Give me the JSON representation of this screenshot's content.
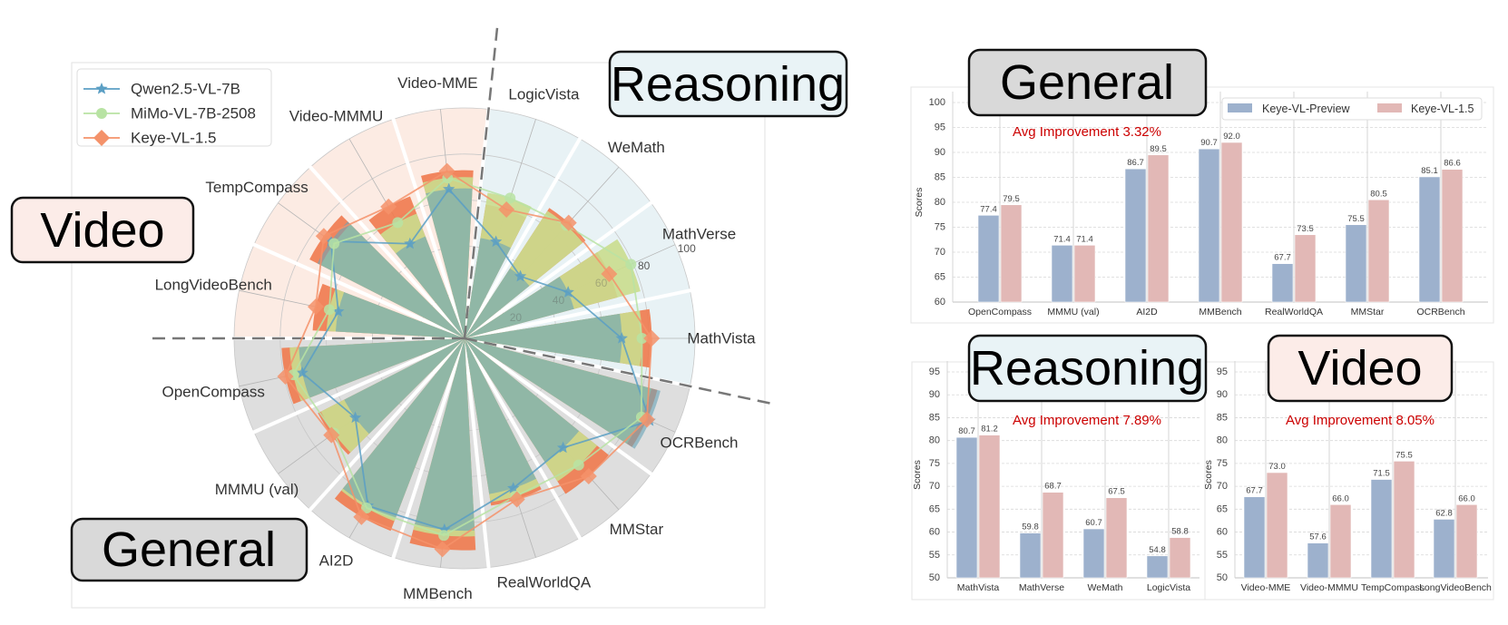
{
  "labels": {
    "reasoning": "Reasoning",
    "video": "Video",
    "general": "General"
  },
  "colors": {
    "reasoning_bg": "#e8f2f5",
    "video_bg": "#fcebe3",
    "general_bg": "#dedede",
    "label_box_reasoning": "#e9f3f6",
    "label_box_video": "#fcece8",
    "label_box_general": "#d9d9d9",
    "bar_preview": "#9db1cd",
    "bar_v15": "#e2b8b6",
    "avg_text": "#cc0000"
  },
  "chart_data": [
    {
      "type": "radar",
      "axes": [
        "MathVista",
        "MathVerse",
        "WeMath",
        "LogicVista",
        "Video-MME",
        "Video-MMMU",
        "TempCompass",
        "LongVideoBench",
        "OpenCompass",
        "MMMU (val)",
        "AI2D",
        "MMBench",
        "RealWorldQA",
        "MMStar",
        "OCRBench"
      ],
      "groups": [
        {
          "name": "Reasoning",
          "axes": [
            0,
            1,
            2,
            3
          ],
          "color": "#e8f2f5"
        },
        {
          "name": "Video",
          "axes": [
            4,
            5,
            6,
            7
          ],
          "color": "#fcebe3"
        },
        {
          "name": "General",
          "axes": [
            8,
            9,
            10,
            11,
            12,
            13,
            14
          ],
          "color": "#dedede"
        }
      ],
      "rlim": [
        0,
        100
      ],
      "rticks": [
        "20",
        "40",
        "60",
        "80",
        "100"
      ],
      "legend": "top-left",
      "series": [
        {
          "name": "Qwen2.5-VL-7B",
          "marker": "star",
          "color": "#5b9fc4",
          "bar_color": "#6aa5b8",
          "values": [
            68.2,
            49.2,
            36.2,
            44.1,
            65.1,
            47.4,
            71.7,
            56.0,
            72.0,
            58.6,
            83.9,
            83.5,
            68.4,
            63.9,
            88.0
          ]
        },
        {
          "name": "MiMo-VL-7B-2508",
          "marker": "circle",
          "color": "#b8e3a3",
          "bar_color": "#cadd8e",
          "values": [
            77.0,
            79.0,
            66.0,
            64.0,
            70.0,
            58.0,
            70.0,
            60.0,
            76.0,
            70.0,
            85.0,
            86.0,
            72.0,
            74.0,
            84.0
          ]
        },
        {
          "name": "Keye-VL-1.5",
          "marker": "diamond",
          "color": "#f4926a",
          "bar_color": "#f07a4e",
          "values": [
            81.2,
            68.7,
            67.5,
            58.8,
            73.0,
            66.0,
            75.5,
            66.0,
            79.5,
            71.4,
            89.5,
            92.0,
            73.5,
            80.5,
            86.6
          ]
        }
      ]
    },
    {
      "type": "bar",
      "title": "General",
      "ylabel": "Scores",
      "ylim": [
        60,
        100
      ],
      "yticks": [
        "60",
        "65",
        "70",
        "75",
        "80",
        "85",
        "90",
        "95",
        "100"
      ],
      "annotation": "Avg Improvement 3.32%",
      "legend": "top-right",
      "categories": [
        "OpenCompass",
        "MMMU (val)",
        "AI2D",
        "MMBench",
        "RealWorldQA",
        "MMStar",
        "OCRBench"
      ],
      "series": [
        {
          "name": "Keye-VL-Preview",
          "values": [
            77.4,
            71.4,
            86.7,
            90.7,
            67.7,
            75.5,
            85.1
          ]
        },
        {
          "name": "Keye-VL-1.5",
          "values": [
            79.5,
            71.4,
            89.5,
            92.0,
            73.5,
            80.5,
            86.6
          ]
        }
      ]
    },
    {
      "type": "bar",
      "title": "Reasoning",
      "ylabel": "Scores",
      "ylim": [
        50,
        95
      ],
      "yticks": [
        "50",
        "55",
        "60",
        "65",
        "70",
        "75",
        "80",
        "85",
        "90",
        "95"
      ],
      "annotation": "Avg Improvement 7.89%",
      "categories": [
        "MathVista",
        "MathVerse",
        "WeMath",
        "LogicVista"
      ],
      "series": [
        {
          "name": "Keye-VL-Preview",
          "values": [
            80.7,
            59.8,
            60.7,
            54.8
          ]
        },
        {
          "name": "Keye-VL-1.5",
          "values": [
            81.2,
            68.7,
            67.5,
            58.8
          ]
        }
      ]
    },
    {
      "type": "bar",
      "title": "Video",
      "ylabel": "Scores",
      "ylim": [
        50,
        95
      ],
      "yticks": [
        "50",
        "55",
        "60",
        "65",
        "70",
        "75",
        "80",
        "85",
        "90",
        "95"
      ],
      "annotation": "Avg Improvement 8.05%",
      "categories": [
        "Video-MME",
        "Video-MMMU",
        "TempCompass",
        "LongVideoBench"
      ],
      "series": [
        {
          "name": "Keye-VL-Preview",
          "values": [
            67.7,
            57.6,
            71.5,
            62.8
          ]
        },
        {
          "name": "Keye-VL-1.5",
          "values": [
            73.0,
            66.0,
            75.5,
            66.0
          ]
        }
      ]
    }
  ]
}
